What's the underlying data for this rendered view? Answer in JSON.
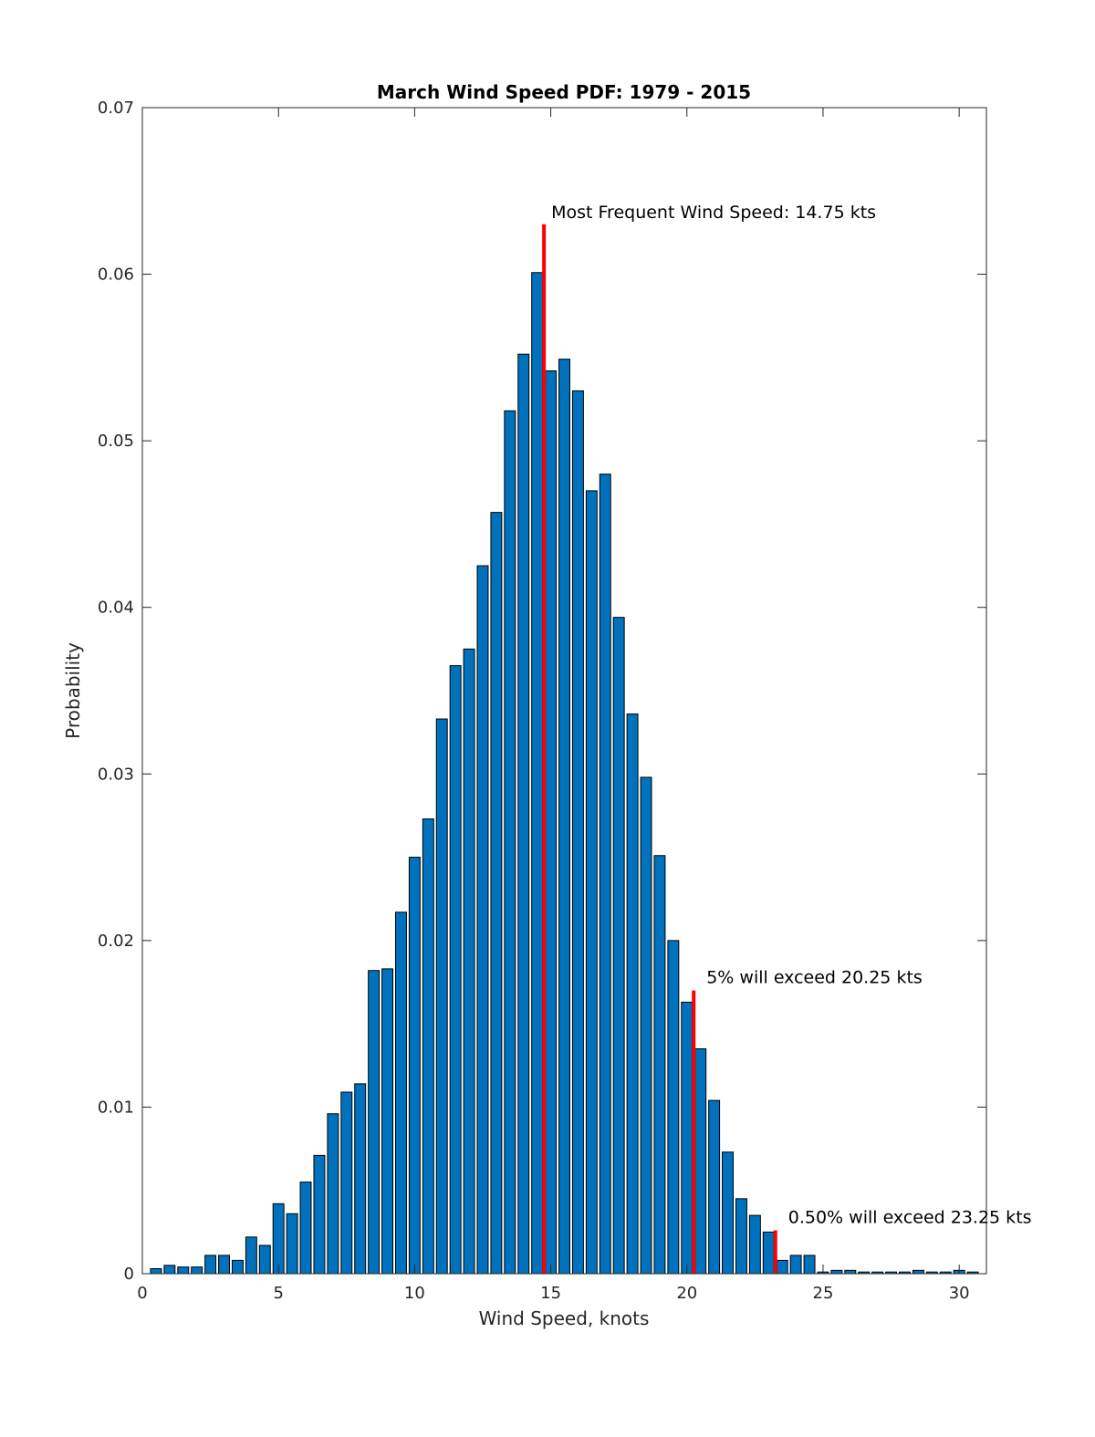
{
  "chart_data": {
    "type": "bar",
    "title": "March Wind Speed PDF: 1979 - 2015",
    "xlabel": "Wind Speed, knots",
    "ylabel": "Probability",
    "xlim": [
      0,
      31
    ],
    "ylim": [
      0,
      0.07
    ],
    "grid": false,
    "bar_color": "#0072bd",
    "x_ticks": [
      0,
      5,
      10,
      15,
      20,
      25,
      30
    ],
    "x_tick_labels": [
      "0",
      "5",
      "10",
      "15",
      "20",
      "25",
      "30"
    ],
    "y_ticks": [
      0,
      0.01,
      0.02,
      0.03,
      0.04,
      0.05,
      0.06,
      0.07
    ],
    "y_tick_labels": [
      "0",
      "0.01",
      "0.02",
      "0.03",
      "0.04",
      "0.05",
      "0.06",
      "0.07"
    ],
    "bin_width": 0.5,
    "x": [
      0.5,
      1.0,
      1.5,
      2.0,
      2.5,
      3.0,
      3.5,
      4.0,
      4.5,
      5.0,
      5.5,
      6.0,
      6.5,
      7.0,
      7.5,
      8.0,
      8.5,
      9.0,
      9.5,
      10.0,
      10.5,
      11.0,
      11.5,
      12.0,
      12.5,
      13.0,
      13.5,
      14.0,
      14.5,
      15.0,
      15.5,
      16.0,
      16.5,
      17.0,
      17.5,
      18.0,
      18.5,
      19.0,
      19.5,
      20.0,
      20.5,
      21.0,
      21.5,
      22.0,
      22.5,
      23.0,
      23.5,
      24.0,
      24.5,
      25.0,
      25.5,
      26.0,
      26.5,
      27.0,
      27.5,
      28.0,
      28.5,
      29.0,
      29.5,
      30.0,
      30.5
    ],
    "values": [
      0.0003,
      0.0005,
      0.0004,
      0.0004,
      0.0011,
      0.0011,
      0.0008,
      0.0022,
      0.0017,
      0.0042,
      0.0036,
      0.0055,
      0.0071,
      0.0096,
      0.0109,
      0.0114,
      0.0182,
      0.0183,
      0.0217,
      0.025,
      0.0273,
      0.0333,
      0.0365,
      0.0375,
      0.0425,
      0.0457,
      0.0518,
      0.0552,
      0.0601,
      0.0542,
      0.0549,
      0.053,
      0.047,
      0.048,
      0.0394,
      0.0336,
      0.0298,
      0.0251,
      0.02,
      0.0163,
      0.0135,
      0.0104,
      0.0073,
      0.0045,
      0.0035,
      0.0025,
      0.0008,
      0.0011,
      0.0011,
      0.0001,
      0.0002,
      0.0002,
      0.0001,
      0.0001,
      0.0001,
      0.0001,
      0.0002,
      0.0001,
      0.0001,
      0.0002,
      0.0001
    ],
    "reference_lines": [
      {
        "x": 14.75,
        "y_top": 0.063,
        "label": "Most Frequent Wind Speed: 14.75 kts",
        "color": "#ff0000"
      },
      {
        "x": 20.25,
        "y_top": 0.017,
        "label": "5% will exceed 20.25 kts",
        "color": "#ff0000"
      },
      {
        "x": 23.25,
        "y_top": 0.0026,
        "label": "0.50% will exceed 23.25 kts",
        "color": "#ff0000"
      }
    ]
  }
}
